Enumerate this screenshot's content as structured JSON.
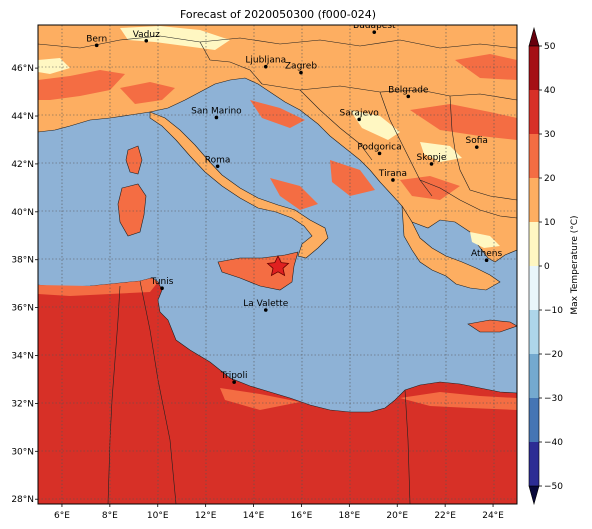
{
  "figure": {
    "title": "Forecast of 2020050300 (f000-024)"
  },
  "map": {
    "lon_range": [
      5.0,
      25.0
    ],
    "lat_range": [
      27.8,
      47.8
    ],
    "lon_ticks": [
      "6°E",
      "8°E",
      "10°E",
      "12°E",
      "14°E",
      "16°E",
      "18°E",
      "20°E",
      "22°E",
      "24°E"
    ],
    "lat_ticks": [
      "28°N",
      "30°N",
      "32°N",
      "34°N",
      "36°N",
      "38°N",
      "40°N",
      "42°N",
      "44°N",
      "46°N"
    ],
    "gridlines": true,
    "sea_color": "#8eb2d6",
    "marker": {
      "symbol": "star",
      "lon": 15.0,
      "lat": 37.75,
      "color": "#e02020"
    },
    "cities": [
      {
        "name": "Bern",
        "lon": 7.45,
        "lat": 46.95
      },
      {
        "name": "Vaduz",
        "lon": 9.52,
        "lat": 47.14
      },
      {
        "name": "Budapest",
        "lon": 19.04,
        "lat": 47.5
      },
      {
        "name": "Ljubljana",
        "lon": 14.51,
        "lat": 46.06
      },
      {
        "name": "Zagreb",
        "lon": 15.98,
        "lat": 45.81
      },
      {
        "name": "Belgrade",
        "lon": 20.46,
        "lat": 44.82
      },
      {
        "name": "San Marino",
        "lon": 12.45,
        "lat": 43.94
      },
      {
        "name": "Sarajevo",
        "lon": 18.41,
        "lat": 43.86
      },
      {
        "name": "Sofia",
        "lon": 23.32,
        "lat": 42.7
      },
      {
        "name": "Podgorica",
        "lon": 19.26,
        "lat": 42.44
      },
      {
        "name": "Skopje",
        "lon": 21.43,
        "lat": 42.0
      },
      {
        "name": "Roma",
        "lon": 12.5,
        "lat": 41.9
      },
      {
        "name": "Tirana",
        "lon": 19.82,
        "lat": 41.33
      },
      {
        "name": "Athens",
        "lon": 23.73,
        "lat": 37.98
      },
      {
        "name": "Tunis",
        "lon": 10.18,
        "lat": 36.81
      },
      {
        "name": "La Valette",
        "lon": 14.51,
        "lat": 35.9
      },
      {
        "name": "Tripoli",
        "lon": 13.19,
        "lat": 32.89
      }
    ]
  },
  "colorbar": {
    "label": "Max Temperature (°C)",
    "ticks": [
      "50",
      "40",
      "30",
      "20",
      "10",
      "0",
      "−10",
      "−20",
      "−30",
      "−40",
      "−50"
    ],
    "bins": [
      {
        "from": 40,
        "to": 50,
        "color": "#a50f15"
      },
      {
        "from": 30,
        "to": 40,
        "color": "#d73027"
      },
      {
        "from": 20,
        "to": 30,
        "color": "#f46d43"
      },
      {
        "from": 10,
        "to": 20,
        "color": "#fdae61"
      },
      {
        "from": 0,
        "to": 10,
        "color": "#fff7c2"
      },
      {
        "from": -10,
        "to": 0,
        "color": "#e9f6fb"
      },
      {
        "from": -20,
        "to": -10,
        "color": "#aed6ea"
      },
      {
        "from": -30,
        "to": -20,
        "color": "#74a9cf"
      },
      {
        "from": -40,
        "to": -30,
        "color": "#4575b4"
      },
      {
        "from": -50,
        "to": -40,
        "color": "#2c2c94"
      }
    ],
    "over_color": "#67000d",
    "under_color": "#08083a"
  }
}
